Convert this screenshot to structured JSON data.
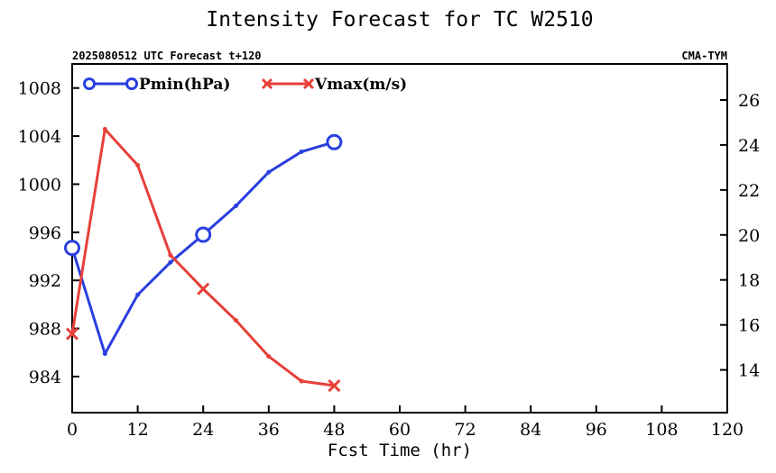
{
  "chart_data": {
    "type": "line",
    "title": "Intensity Forecast for TC W2510",
    "subtitle_left": "2025080512 UTC Forecast t+120",
    "subtitle_right": "CMA-TYM",
    "xlabel": "Fcst Time (hr)",
    "xlim": [
      0,
      120
    ],
    "x_ticks": [
      0,
      12,
      24,
      36,
      48,
      60,
      72,
      84,
      96,
      108,
      120
    ],
    "y_left_lim": [
      981,
      1010
    ],
    "y_left_ticks": [
      984,
      988,
      992,
      996,
      1000,
      1004,
      1008
    ],
    "y_right_lim": [
      12.1,
      27.6
    ],
    "y_right_ticks": [
      14,
      16,
      18,
      20,
      22,
      24,
      26
    ],
    "legend_position": "top-left",
    "grid": false,
    "series": [
      {
        "name": "Pmin(hPa)",
        "axis": "left",
        "color": "#2a3fe0",
        "marker": "circle",
        "x": [
          0,
          6,
          12,
          18,
          24,
          30,
          36,
          42,
          48
        ],
        "values": [
          994.7,
          985.9,
          990.8,
          993.5,
          995.8,
          998.2,
          1001.0,
          1002.7,
          1003.5
        ],
        "major_marker_x": [
          0,
          24,
          48
        ]
      },
      {
        "name": "Vmax(m/s)",
        "axis": "right",
        "color": "#e8403a",
        "marker": "x",
        "x": [
          0,
          6,
          12,
          18,
          24,
          30,
          36,
          42,
          48
        ],
        "values": [
          15.6,
          24.7,
          23.1,
          19.1,
          17.6,
          16.2,
          14.6,
          13.5,
          13.3
        ],
        "major_marker_x": [
          0,
          24,
          48
        ]
      }
    ]
  }
}
